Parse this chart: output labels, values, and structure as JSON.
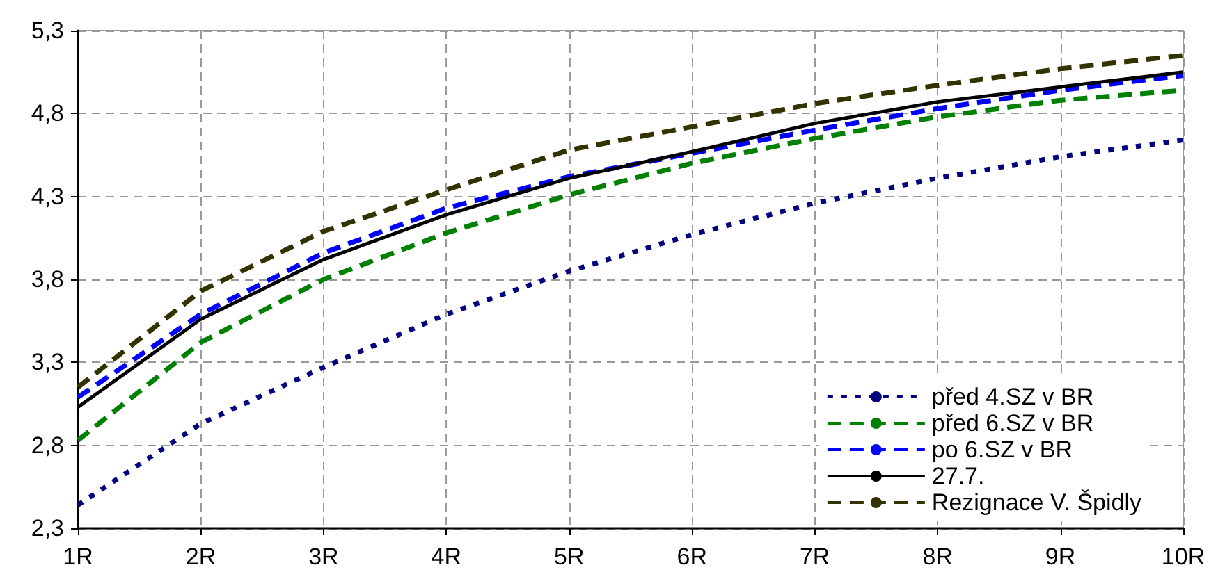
{
  "chart_data": {
    "type": "line",
    "categories": [
      "1R",
      "2R",
      "3R",
      "4R",
      "5R",
      "6R",
      "7R",
      "8R",
      "9R",
      "10R"
    ],
    "series": [
      {
        "name": "před 4.SZ v BR",
        "color": "#000080",
        "line_style": "dotted",
        "values": [
          2.44,
          2.93,
          3.27,
          3.59,
          3.85,
          4.07,
          4.26,
          4.41,
          4.54,
          4.64
        ]
      },
      {
        "name": "před 6.SZ v BR",
        "color": "#008000",
        "line_style": "dashed",
        "values": [
          2.83,
          3.42,
          3.8,
          4.08,
          4.31,
          4.5,
          4.65,
          4.78,
          4.88,
          4.94
        ]
      },
      {
        "name": "po 6.SZ v BR",
        "color": "#0000ff",
        "line_style": "dashed",
        "values": [
          3.09,
          3.59,
          3.96,
          4.23,
          4.42,
          4.56,
          4.7,
          4.83,
          4.94,
          5.03
        ]
      },
      {
        "name": "27.7.",
        "color": "#000000",
        "line_style": "solid",
        "values": [
          3.03,
          3.56,
          3.92,
          4.19,
          4.41,
          4.57,
          4.74,
          4.87,
          4.96,
          5.05
        ]
      },
      {
        "name": "Rezignace V. Špidly",
        "color": "#333300",
        "line_style": "dashed",
        "values": [
          3.15,
          3.73,
          4.09,
          4.34,
          4.58,
          4.72,
          4.86,
          4.97,
          5.07,
          5.15
        ]
      }
    ],
    "ylim": [
      2.3,
      5.3
    ],
    "yticks": [
      {
        "value": 2.3,
        "label": "2,3"
      },
      {
        "value": 2.8,
        "label": "2,8"
      },
      {
        "value": 3.3,
        "label": "3,3"
      },
      {
        "value": 3.8,
        "label": "3,8"
      },
      {
        "value": 4.3,
        "label": "4,3"
      },
      {
        "value": 4.8,
        "label": "4,8"
      },
      {
        "value": 5.3,
        "label": "5,3"
      }
    ],
    "grid": true,
    "legend": "bottom right",
    "marker": "none"
  }
}
